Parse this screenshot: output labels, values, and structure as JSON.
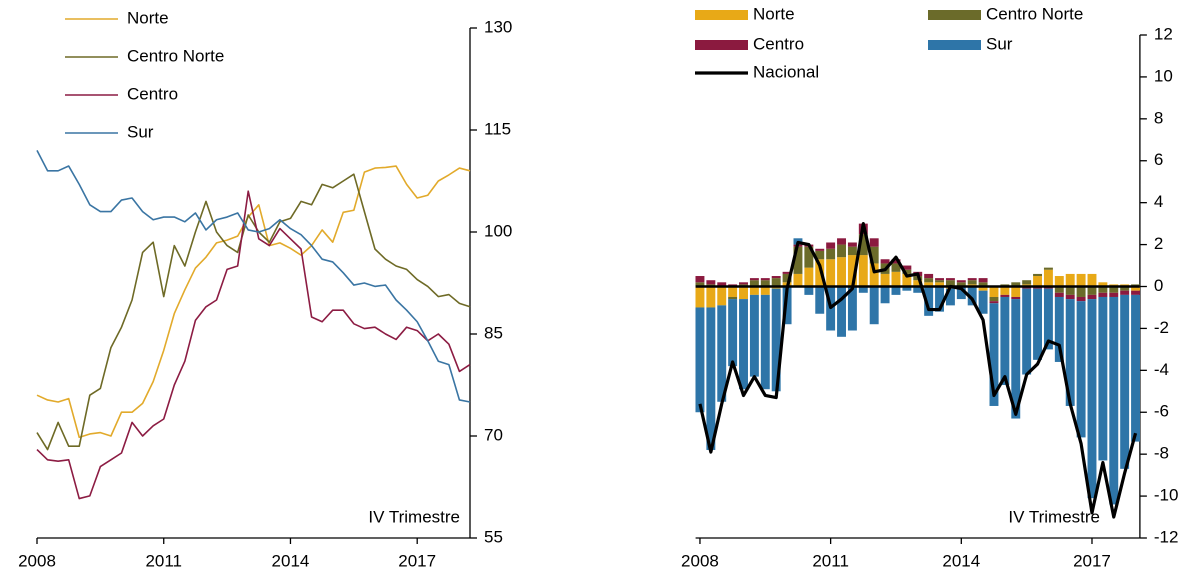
{
  "chart_data": [
    {
      "type": "line",
      "x": [
        2008,
        2008.25,
        2008.5,
        2008.75,
        2009,
        2009.25,
        2009.5,
        2009.75,
        2010,
        2010.25,
        2010.5,
        2010.75,
        2011,
        2011.25,
        2011.5,
        2011.75,
        2012,
        2012.25,
        2012.5,
        2012.75,
        2013,
        2013.25,
        2013.5,
        2013.75,
        2014,
        2014.25,
        2014.5,
        2014.75,
        2015,
        2015.25,
        2015.5,
        2015.75,
        2016,
        2016.25,
        2016.5,
        2016.75,
        2017,
        2017.25,
        2017.5,
        2017.75,
        2018,
        2018.25
      ],
      "xlim": [
        2008,
        2018.25
      ],
      "xticks": [
        2008,
        2011,
        2014,
        2017
      ],
      "ylim": [
        55,
        130
      ],
      "yticks": [
        55,
        70,
        85,
        100,
        115,
        130
      ],
      "annotation": "IV Trimestre",
      "series": [
        {
          "name": "Norte",
          "color": "#e2aa2b",
          "values": [
            76,
            75.3,
            75,
            75.5,
            69.8,
            70.3,
            70.5,
            70,
            73.5,
            73.5,
            74.8,
            78,
            82.6,
            88,
            91.5,
            94.7,
            96.3,
            98.4,
            98.8,
            99.4,
            102.2,
            104,
            98,
            98.4,
            97.6,
            96.6,
            98,
            100.3,
            98.5,
            102.9,
            103.2,
            108.8,
            109.4,
            109.5,
            109.7,
            107,
            105,
            105.4,
            107.5,
            108.4,
            109.4,
            109
          ]
        },
        {
          "name": "Centro Norte",
          "color": "#6e6a26",
          "values": [
            70.5,
            68,
            72,
            68.5,
            68.5,
            76,
            77,
            83,
            86,
            90,
            97,
            98.5,
            90.5,
            98,
            95,
            100,
            104.5,
            100,
            98,
            97,
            102.5,
            100,
            98.5,
            101.5,
            102,
            104.5,
            104,
            107,
            106.5,
            107.5,
            108.5,
            103,
            97.5,
            96,
            95,
            94.5,
            93,
            92,
            90.5,
            90.8,
            89.5,
            89
          ]
        },
        {
          "name": "Centro",
          "color": "#8c1c43",
          "values": [
            68,
            66.5,
            66.3,
            66.5,
            60.8,
            61.2,
            65.5,
            66.5,
            67.5,
            72,
            70,
            71.5,
            72.5,
            77.5,
            81,
            87,
            89,
            90,
            94.5,
            95,
            106,
            99,
            98,
            100.5,
            99,
            97.5,
            87.5,
            86.8,
            88.5,
            88.5,
            86.5,
            85.8,
            86,
            85,
            84.2,
            86,
            85.5,
            84,
            85,
            83.5,
            79.5,
            80.5
          ]
        },
        {
          "name": "Sur",
          "color": "#3a75a3",
          "values": [
            112,
            109,
            109,
            109.7,
            107,
            104,
            103,
            103,
            104.7,
            105,
            103,
            101.8,
            102.2,
            102.2,
            101.5,
            102.8,
            100.3,
            101.8,
            102.2,
            102.8,
            100.3,
            100,
            100.5,
            101.8,
            100.5,
            99.6,
            98,
            96,
            95.6,
            94,
            92.2,
            92.5,
            92,
            92.2,
            90,
            88.5,
            86.8,
            84,
            81,
            80.5,
            75.3,
            75
          ]
        }
      ]
    },
    {
      "type": "bar",
      "stacked": true,
      "x": [
        2008,
        2008.25,
        2008.5,
        2008.75,
        2009,
        2009.25,
        2009.5,
        2009.75,
        2010,
        2010.25,
        2010.5,
        2010.75,
        2011,
        2011.25,
        2011.5,
        2011.75,
        2012,
        2012.25,
        2012.5,
        2012.75,
        2013,
        2013.25,
        2013.5,
        2013.75,
        2014,
        2014.25,
        2014.5,
        2014.75,
        2015,
        2015.25,
        2015.5,
        2015.75,
        2016,
        2016.25,
        2016.5,
        2016.75,
        2017,
        2017.25,
        2017.5,
        2017.75,
        2018
      ],
      "xlim": [
        2007.9,
        2018.1
      ],
      "xticks": [
        2008,
        2011,
        2014,
        2017
      ],
      "ylim": [
        -12,
        12
      ],
      "yticks": [
        -12,
        -10,
        -8,
        -6,
        -4,
        -2,
        0,
        2,
        4,
        6,
        8,
        10,
        12
      ],
      "annotation": "IV Trimestre",
      "series": [
        {
          "name": "Norte",
          "color": "#e8a917",
          "values": [
            -1.0,
            -1.0,
            -0.9,
            -0.5,
            -0.6,
            -0.4,
            -0.4,
            -0.1,
            0.2,
            0.6,
            0.9,
            1.3,
            1.3,
            1.4,
            1.5,
            1.5,
            1.1,
            0.6,
            0.7,
            0.6,
            0.3,
            0.2,
            0.2,
            -0.1,
            0,
            0.1,
            -0.2,
            -0.5,
            -0.4,
            -0.5,
            0.1,
            0.5,
            0.8,
            0.5,
            0.6,
            0.6,
            0.6,
            0.2,
            0.1,
            0.1,
            -0.2
          ]
        },
        {
          "name": "Centro Norte",
          "color": "#6b6b2a",
          "values": [
            0.2,
            0.1,
            0.0,
            -0.1,
            0.1,
            0.3,
            0.3,
            0.4,
            0.4,
            1.3,
            1.0,
            0.4,
            0.5,
            0.6,
            0.4,
            1.0,
            0.8,
            0.5,
            0.4,
            0.2,
            0.2,
            0.2,
            0.1,
            0.3,
            0.2,
            0.2,
            0.2,
            -0.2,
            0.1,
            0.2,
            0.2,
            0.1,
            0.1,
            -0.3,
            -0.4,
            -0.5,
            -0.4,
            -0.3,
            -0.3,
            -0.2,
            0.1
          ]
        },
        {
          "name": "Centro",
          "color": "#8b1a3f",
          "values": [
            0.3,
            0.2,
            0.2,
            0.1,
            0.1,
            0.1,
            0.1,
            0.1,
            0.1,
            0.1,
            0.1,
            0.1,
            0.3,
            0.3,
            0.2,
            0.5,
            0.4,
            0.2,
            0.2,
            0.2,
            0.2,
            0.2,
            0.1,
            0.1,
            0.1,
            0.1,
            0.2,
            -0.1,
            -0.1,
            -0.1,
            -0.1,
            -0.1,
            -0.1,
            -0.2,
            -0.2,
            -0.2,
            -0.2,
            -0.2,
            -0.2,
            -0.2,
            -0.2
          ]
        },
        {
          "name": "Sur",
          "color": "#2e75a8",
          "values": [
            -5.0,
            -6.8,
            -4.6,
            -3.2,
            -4.3,
            -3.9,
            -4.5,
            -4.9,
            -1.8,
            0.3,
            -0.4,
            -1.3,
            -2.1,
            -2.4,
            -2.1,
            -0.3,
            -1.8,
            -0.8,
            -0.4,
            -0.2,
            -0.3,
            -1.4,
            -1.2,
            -0.8,
            -0.6,
            -0.9,
            -1.1,
            -4.9,
            -4.2,
            -5.7,
            -4.1,
            -3.4,
            -2.9,
            -3.1,
            -5.1,
            -6.5,
            -9.5,
            -7.8,
            -9.9,
            -8.3,
            -7.0
          ]
        },
        {
          "name": "Nacional",
          "type": "line",
          "color": "#000000",
          "values": [
            -5.6,
            -7.9,
            -5.6,
            -3.6,
            -5.2,
            -4.3,
            -5.2,
            -5.3,
            -0.1,
            2.1,
            2.0,
            1.0,
            -1.0,
            -0.6,
            -0.1,
            3.0,
            0.7,
            0.8,
            1.4,
            0.5,
            0.6,
            -1.1,
            -1.1,
            0,
            -0.1,
            -0.6,
            -1.6,
            -5.2,
            -4.3,
            -6.1,
            -4.2,
            -3.7,
            -2.6,
            -2.8,
            -5.6,
            -7.5,
            -10.8,
            -8.4,
            -11.0,
            -8.9,
            -7.0
          ]
        }
      ]
    }
  ]
}
